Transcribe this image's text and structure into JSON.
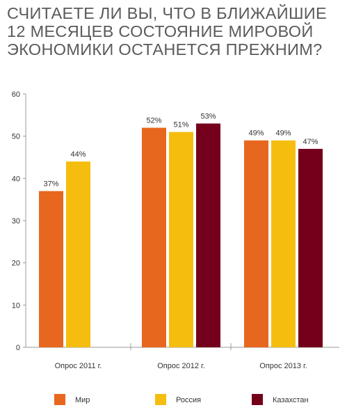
{
  "title_lines": [
    "СЧИТАЕТЕ ЛИ ВЫ, ЧТО В БЛИЖАЙШИЕ",
    "12 МЕСЯЦЕВ СОСТОЯНИЕ МИРОВОЙ",
    "ЭКОНОМИКИ ОСТАНЕТСЯ ПРЕЖНИМ?"
  ],
  "chart_data": {
    "type": "bar",
    "title": "СЧИТАЕТЕ ЛИ ВЫ, ЧТО В БЛИЖАЙШИЕ 12 МЕСЯЦЕВ СОСТОЯНИЕ МИРОВОЙ ЭКОНОМИКИ ОСТАНЕТСЯ ПРЕЖНИМ?",
    "xlabel": "",
    "ylabel": "",
    "categories": [
      "Опрос 2011 г.",
      "Опрос 2012 г.",
      "Опрос 2013 г."
    ],
    "ylim": [
      0,
      60
    ],
    "yticks": [
      0,
      10,
      20,
      30,
      40,
      50,
      60
    ],
    "grid": false,
    "legend_position": "bottom",
    "series": [
      {
        "name": "Мир",
        "color": "#e8671e",
        "values": [
          37,
          52,
          49
        ],
        "labels": [
          "37%",
          "52%",
          "49%"
        ]
      },
      {
        "name": "Россия",
        "color": "#f5be0f",
        "values": [
          44,
          51,
          49
        ],
        "labels": [
          "44%",
          "51%",
          "49%"
        ]
      },
      {
        "name": "Казахстан",
        "color": "#75001b",
        "values": [
          null,
          53,
          47
        ],
        "labels": [
          null,
          "53%",
          "47%"
        ]
      }
    ]
  }
}
